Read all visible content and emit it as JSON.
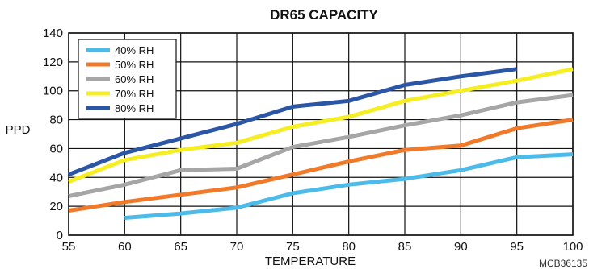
{
  "chart_data": {
    "type": "line",
    "title": "DR65 CAPACITY",
    "xlabel": "TEMPERATURE",
    "ylabel": "PPD",
    "xlim": [
      55,
      100
    ],
    "ylim": [
      0,
      140
    ],
    "xticks": [
      55,
      60,
      65,
      70,
      75,
      80,
      85,
      90,
      95,
      100
    ],
    "yticks": [
      0,
      20,
      40,
      60,
      80,
      100,
      120,
      140
    ],
    "grid": true,
    "legend_position": "top-left",
    "series": [
      {
        "name": "40% RH",
        "color": "#4dbbea",
        "x": [
          60,
          65,
          70,
          75,
          80,
          85,
          90,
          95,
          100
        ],
        "y": [
          12,
          15,
          19,
          29,
          35,
          39,
          45,
          54,
          56
        ]
      },
      {
        "name": "50% RH",
        "color": "#f07a2a",
        "x": [
          55,
          60,
          65,
          70,
          75,
          80,
          85,
          90,
          95,
          100
        ],
        "y": [
          17,
          23,
          28,
          33,
          42,
          51,
          59,
          62,
          74,
          80
        ]
      },
      {
        "name": "60% RH",
        "color": "#a6a6a6",
        "x": [
          55,
          60,
          65,
          70,
          75,
          80,
          85,
          90,
          95,
          100
        ],
        "y": [
          27,
          35,
          45,
          46,
          61,
          68,
          76,
          83,
          92,
          97
        ]
      },
      {
        "name": "70% RH",
        "color": "#f5ee22",
        "x": [
          55,
          60,
          65,
          70,
          75,
          80,
          85,
          90,
          95,
          100
        ],
        "y": [
          37,
          52,
          59,
          64,
          75,
          82,
          93,
          100,
          107,
          115
        ]
      },
      {
        "name": "80% RH",
        "color": "#2b56a6",
        "x": [
          55,
          60,
          65,
          70,
          75,
          80,
          85,
          90,
          95
        ],
        "y": [
          42,
          57,
          67,
          77,
          89,
          93,
          104,
          110,
          115
        ]
      }
    ]
  },
  "figure_code": "MCB36135"
}
